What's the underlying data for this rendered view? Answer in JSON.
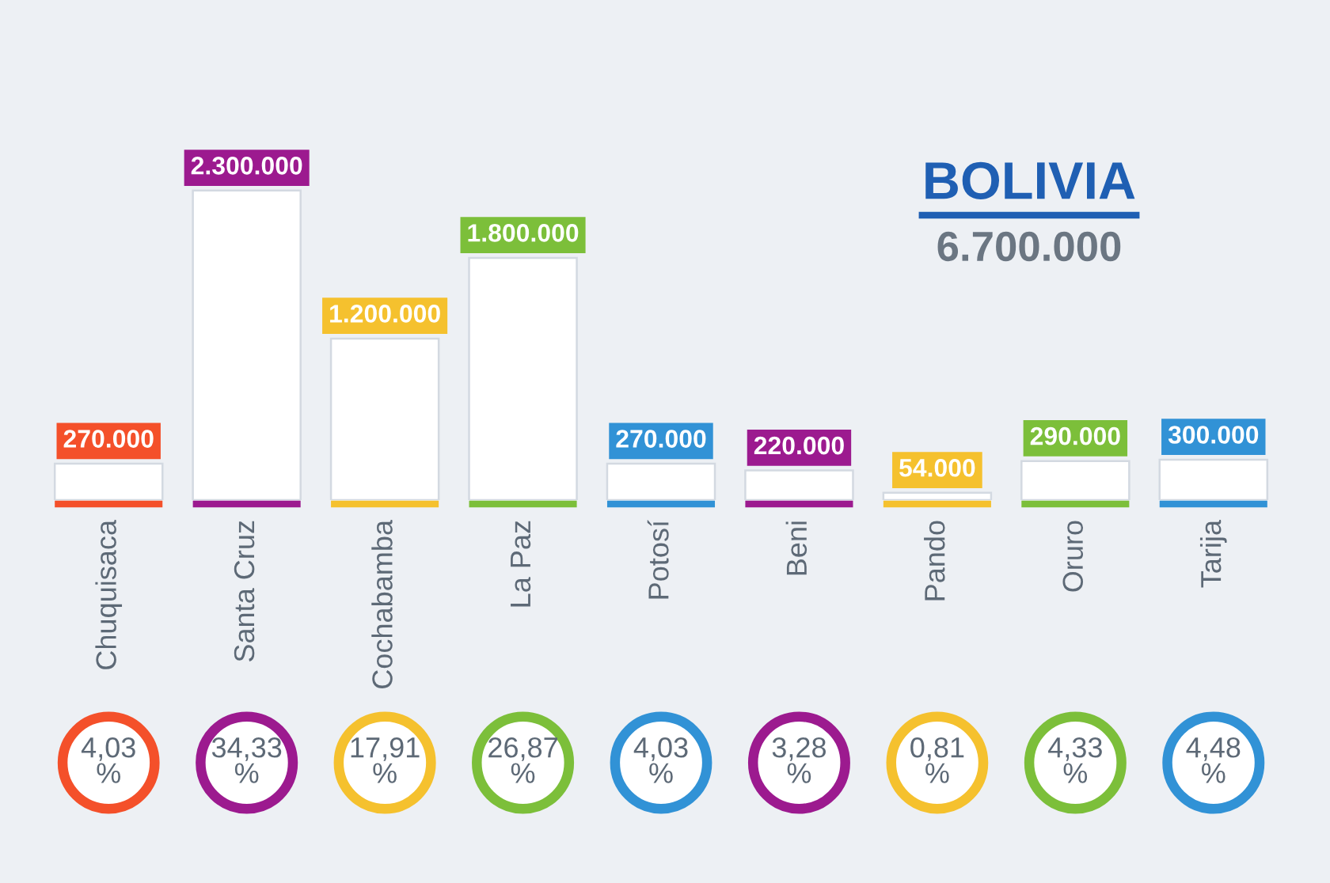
{
  "chart_data": {
    "type": "bar",
    "title": "BOLIVIA",
    "subtitle": "6.700.000",
    "categories": [
      "Chuquisaca",
      "Santa Cruz",
      "Cochabamba",
      "La Paz",
      "Potosí",
      "Beni",
      "Pando",
      "Oruro",
      "Tarija"
    ],
    "values": [
      270000,
      2300000,
      1200000,
      1800000,
      270000,
      220000,
      54000,
      290000,
      300000
    ],
    "value_labels": [
      "270.000",
      "2.300.000",
      "1.200.000",
      "1.800.000",
      "270.000",
      "220.000",
      "54.000",
      "290.000",
      "300.000"
    ],
    "color": "#ffffff",
    "annotations": [
      "4,03\n%",
      "34,33\n%",
      "17,91\n%",
      "26,87\n%",
      "4,03\n%",
      "3,28\n%",
      "0,81\n%",
      "4,33\n%",
      "4,48\n%"
    ],
    "tick_labels": "x"
  }
}
